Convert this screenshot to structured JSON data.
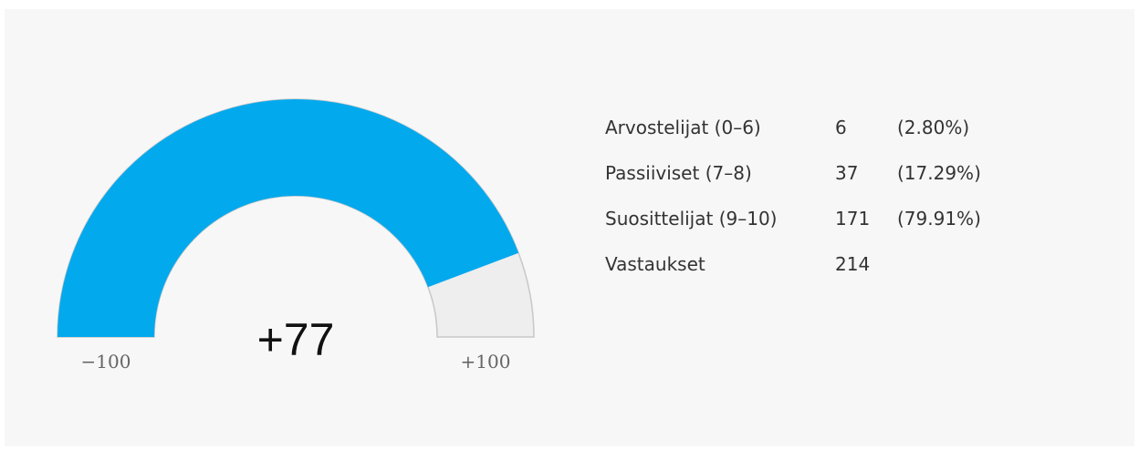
{
  "chart_data": {
    "type": "gauge",
    "values": [
      77
    ],
    "value_labels": [
      "+77"
    ],
    "color": "#03a9ed",
    "track_color": "#eeeeee",
    "ylim": [
      -100,
      100
    ],
    "yticks": [
      {
        "value": -100,
        "label": "−100"
      },
      {
        "value": 100,
        "label": "+100"
      }
    ]
  },
  "table": {
    "rows": [
      [
        "Arvostelijat (0–6)",
        "6",
        "(2.80%)"
      ],
      [
        "Passiiviset (7–8)",
        "37",
        "(17.29%)"
      ],
      [
        "Suosittelijat (9–10)",
        "171",
        "(79.91%)"
      ],
      [
        "Vastaukset",
        "214"
      ]
    ]
  }
}
